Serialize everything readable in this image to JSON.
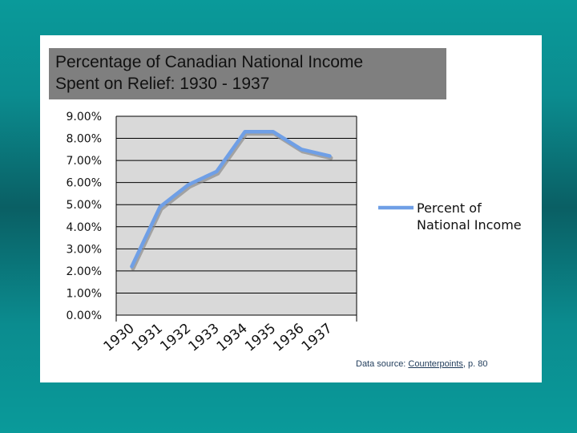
{
  "title": {
    "line1": "Percentage of Canadian National Income",
    "line2": "Spent on Relief: 1930 - 1937"
  },
  "source": {
    "prefix": "Data source: ",
    "link": "Counterpoints",
    "suffix": ", p. 80"
  },
  "chart_data": {
    "type": "line",
    "x": [
      "1930",
      "1931",
      "1932",
      "1933",
      "1934",
      "1935",
      "1936",
      "1937"
    ],
    "series": [
      {
        "name": "Percent of National Income",
        "values": [
          2.2,
          4.9,
          5.9,
          6.5,
          8.3,
          8.3,
          7.5,
          7.2
        ]
      }
    ],
    "yticks": [
      "0.00%",
      "1.00%",
      "2.00%",
      "3.00%",
      "4.00%",
      "5.00%",
      "6.00%",
      "7.00%",
      "8.00%",
      "9.00%"
    ],
    "ylim": [
      0,
      9
    ],
    "grid": true,
    "legend_position": "right",
    "legend_lines": [
      "Percent of",
      "National Income"
    ],
    "colors": {
      "line": "#6f9fe6",
      "shadow": "#8a8a8a",
      "plot_bg": "#d9d9d9",
      "grid": "#000000"
    }
  }
}
